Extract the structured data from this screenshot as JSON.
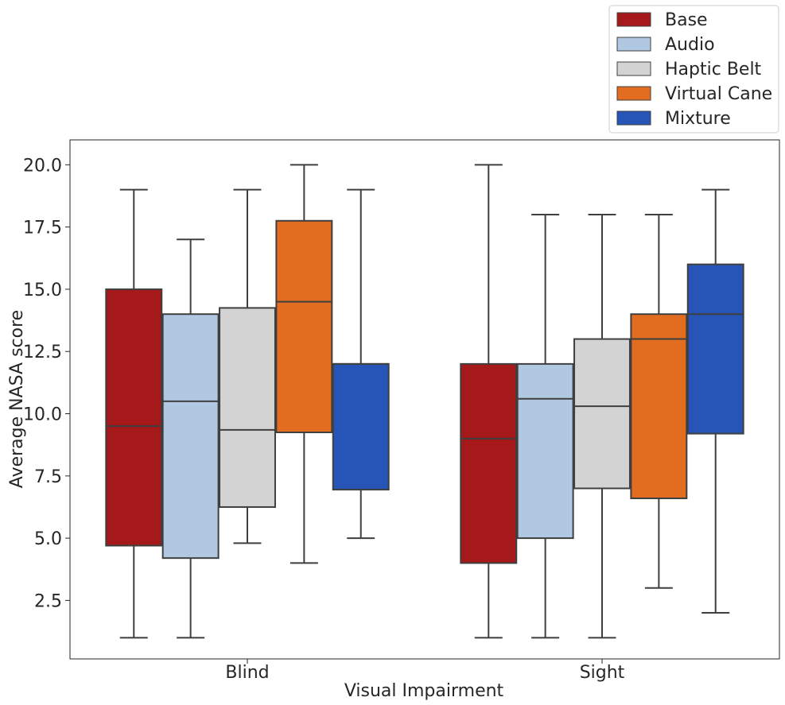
{
  "chart_data": {
    "type": "box",
    "xlabel": "Visual Impairment",
    "ylabel": "Average NASA score",
    "categories": [
      "Blind",
      "Sight"
    ],
    "ylim": [
      0.15,
      21.0
    ],
    "yticks": [
      2.5,
      5.0,
      7.5,
      10.0,
      12.5,
      15.0,
      17.5,
      20.0
    ],
    "ytick_labels": [
      "2.5",
      "5.0",
      "7.5",
      "10.0",
      "12.5",
      "15.0",
      "17.5",
      "20.0"
    ],
    "legend_position": "top-right",
    "grid": false,
    "series": [
      {
        "name": "Base",
        "color": "#a5191a",
        "boxes": [
          {
            "category": "Blind",
            "whisker_low": 1.0,
            "q1": 4.7,
            "median": 9.5,
            "q3": 15.0,
            "whisker_high": 19.0
          },
          {
            "category": "Sight",
            "whisker_low": 1.0,
            "q1": 4.0,
            "median": 9.0,
            "q3": 12.0,
            "whisker_high": 20.0
          }
        ]
      },
      {
        "name": "Audio",
        "color": "#b0c8e1",
        "boxes": [
          {
            "category": "Blind",
            "whisker_low": 1.0,
            "q1": 4.2,
            "median": 10.5,
            "q3": 14.0,
            "whisker_high": 17.0
          },
          {
            "category": "Sight",
            "whisker_low": 1.0,
            "q1": 5.0,
            "median": 10.6,
            "q3": 12.0,
            "whisker_high": 18.0
          }
        ]
      },
      {
        "name": "Haptic Belt",
        "color": "#d3d3d3",
        "boxes": [
          {
            "category": "Blind",
            "whisker_low": 4.8,
            "q1": 6.25,
            "median": 9.35,
            "q3": 14.25,
            "whisker_high": 19.0
          },
          {
            "category": "Sight",
            "whisker_low": 1.0,
            "q1": 7.0,
            "median": 10.3,
            "q3": 13.0,
            "whisker_high": 18.0
          }
        ]
      },
      {
        "name": "Virtual Cane",
        "color": "#e26c20",
        "boxes": [
          {
            "category": "Blind",
            "whisker_low": 4.0,
            "q1": 9.25,
            "median": 14.5,
            "q3": 17.75,
            "whisker_high": 20.0
          },
          {
            "category": "Sight",
            "whisker_low": 3.0,
            "q1": 6.6,
            "median": 13.0,
            "q3": 14.0,
            "whisker_high": 18.0
          }
        ]
      },
      {
        "name": "Mixture",
        "color": "#2654b7",
        "boxes": [
          {
            "category": "Blind",
            "whisker_low": 5.0,
            "q1": 6.95,
            "median": 12.0,
            "q3": 12.0,
            "whisker_high": 19.0
          },
          {
            "category": "Sight",
            "whisker_low": 2.0,
            "q1": 9.2,
            "median": 14.0,
            "q3": 16.0,
            "whisker_high": 19.0
          }
        ]
      }
    ]
  }
}
